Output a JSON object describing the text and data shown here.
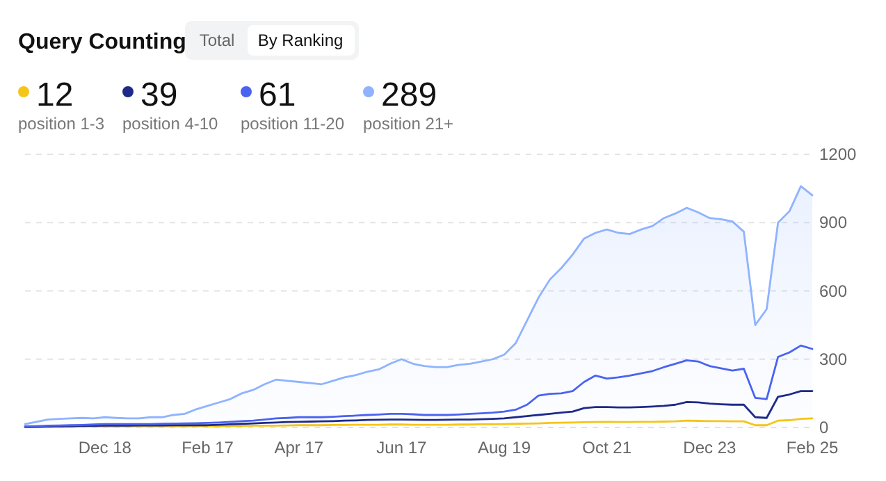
{
  "chart_data": {
    "type": "area",
    "title": "Query Counting",
    "annotations": [
      "Total",
      "By Ranking",
      "12",
      "39",
      "61",
      "289"
    ],
    "categories": [
      null,
      null,
      null,
      null,
      null,
      null,
      null,
      "Dec 18",
      null,
      null,
      null,
      null,
      null,
      null,
      null,
      null,
      "Feb 17",
      null,
      null,
      null,
      null,
      null,
      null,
      null,
      "Apr 17",
      null,
      null,
      null,
      null,
      null,
      null,
      null,
      null,
      "Jun 17",
      null,
      null,
      null,
      null,
      null,
      null,
      null,
      null,
      "Aug 19",
      null,
      null,
      null,
      null,
      null,
      null,
      null,
      null,
      "Oct 21",
      null,
      null,
      null,
      null,
      null,
      null,
      null,
      null,
      "Dec 23",
      null,
      null,
      null,
      null,
      null,
      null,
      null,
      null,
      "Feb 25"
    ],
    "series": [
      {
        "name": "position 1-3",
        "type": "line",
        "color": "#f5c518",
        "values": [
          2,
          2,
          3,
          3,
          3,
          4,
          4,
          4,
          4,
          5,
          5,
          5,
          5,
          5,
          5,
          6,
          6,
          6,
          7,
          7,
          8,
          8,
          8,
          9,
          10,
          10,
          10,
          11,
          11,
          12,
          12,
          12,
          13,
          13,
          12,
          12,
          12,
          12,
          13,
          13,
          14,
          14,
          15,
          16,
          17,
          18,
          20,
          21,
          22,
          23,
          24,
          25,
          24,
          24,
          25,
          25,
          26,
          27,
          30,
          29,
          28,
          28,
          27,
          27,
          10,
          10,
          30,
          32,
          38,
          40
        ]
      },
      {
        "name": "position 4-10",
        "type": "line",
        "color": "#1e2a8a",
        "values": [
          2,
          3,
          4,
          5,
          6,
          7,
          7,
          8,
          8,
          8,
          9,
          9,
          9,
          10,
          10,
          10,
          10,
          12,
          14,
          16,
          18,
          20,
          22,
          24,
          25,
          26,
          27,
          28,
          30,
          31,
          33,
          34,
          35,
          35,
          34,
          33,
          33,
          34,
          35,
          35,
          36,
          38,
          40,
          45,
          50,
          55,
          60,
          65,
          70,
          85,
          90,
          90,
          88,
          88,
          90,
          92,
          95,
          100,
          112,
          110,
          105,
          102,
          100,
          100,
          45,
          42,
          135,
          145,
          160,
          160
        ]
      },
      {
        "name": "position 11-20",
        "type": "line",
        "color": "#4a63f0",
        "values": [
          5,
          6,
          8,
          9,
          10,
          11,
          13,
          15,
          15,
          15,
          15,
          15,
          16,
          17,
          18,
          19,
          20,
          22,
          25,
          28,
          30,
          35,
          40,
          42,
          45,
          45,
          45,
          47,
          50,
          52,
          55,
          57,
          60,
          60,
          58,
          55,
          55,
          55,
          57,
          60,
          62,
          65,
          70,
          78,
          100,
          140,
          148,
          150,
          160,
          200,
          228,
          215,
          220,
          228,
          238,
          248,
          265,
          280,
          295,
          290,
          270,
          260,
          250,
          258,
          130,
          125,
          310,
          330,
          360,
          345
        ]
      },
      {
        "name": "position 21+",
        "color": "#8fb3ff",
        "values": [
          15,
          25,
          35,
          38,
          40,
          42,
          40,
          45,
          42,
          40,
          40,
          45,
          45,
          55,
          60,
          80,
          95,
          110,
          125,
          150,
          165,
          190,
          210,
          205,
          200,
          195,
          190,
          205,
          220,
          230,
          245,
          255,
          280,
          300,
          280,
          270,
          265,
          265,
          275,
          280,
          290,
          300,
          320,
          370,
          470,
          570,
          650,
          700,
          760,
          830,
          855,
          870,
          855,
          850,
          870,
          885,
          920,
          940,
          965,
          945,
          920,
          915,
          905,
          860,
          450,
          520,
          900,
          950,
          1060,
          1020
        ]
      }
    ],
    "ylim": [
      0,
      1200
    ],
    "yticks": [
      0,
      300,
      600,
      900,
      1200
    ],
    "grid": "y",
    "legend": "top left"
  }
}
